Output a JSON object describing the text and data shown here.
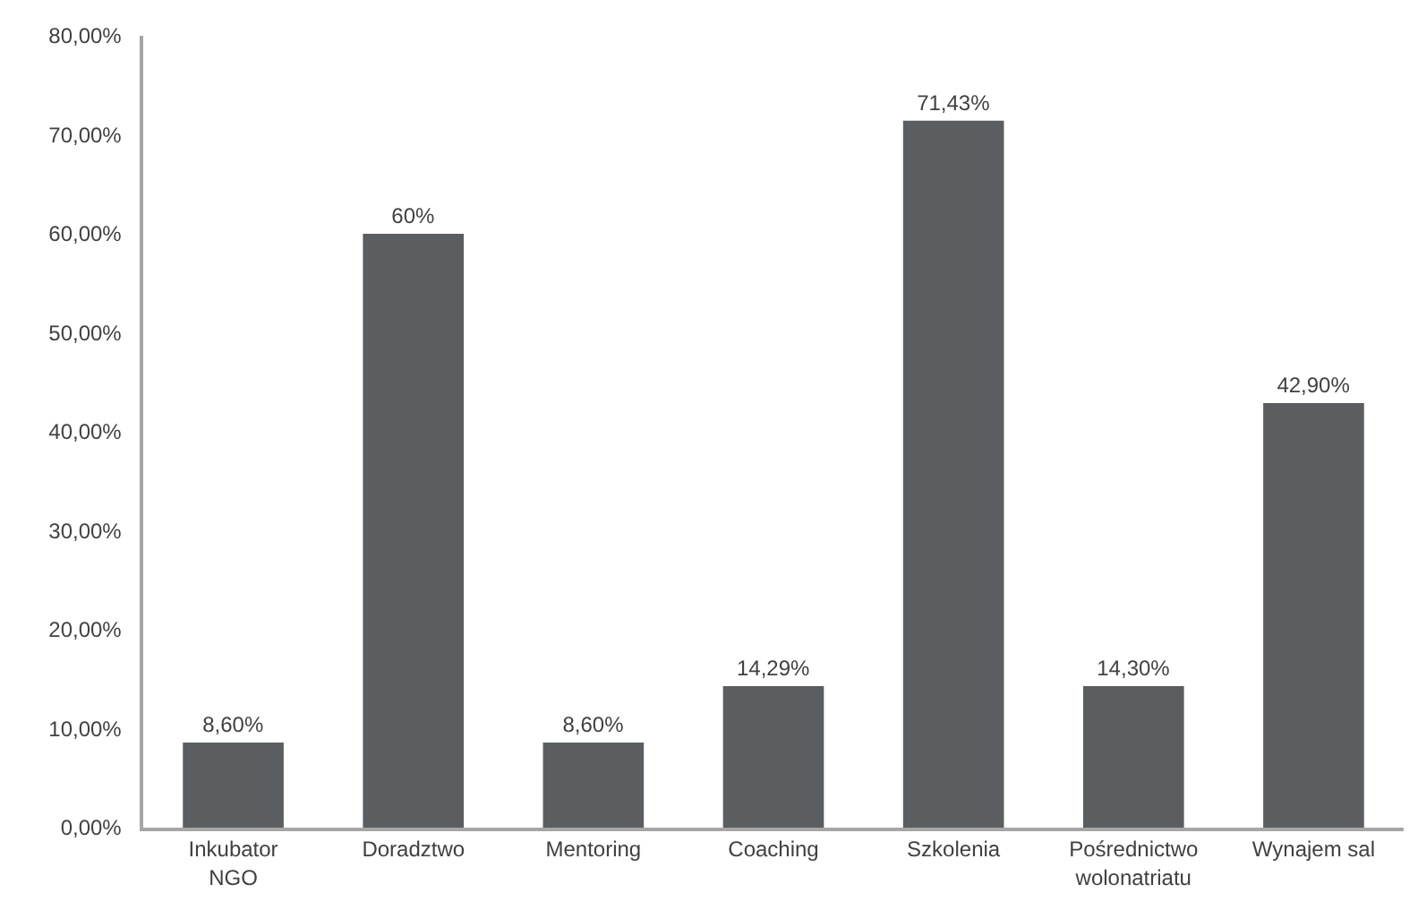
{
  "chart_data": {
    "type": "bar",
    "categories": [
      "Inkubator NGO",
      "Doradztwo",
      "Mentoring",
      "Coaching",
      "Szkolenia",
      "Pośrednictwo wolonatriatu",
      "Wynajem sal"
    ],
    "values": [
      8.6,
      60,
      8.6,
      14.29,
      71.43,
      14.3,
      42.9
    ],
    "value_labels": [
      "8,60%",
      "60%",
      "8,60%",
      "14,29%",
      "71,43%",
      "14,30%",
      "42,90%"
    ],
    "color": "#5a5e60",
    "ylim": [
      0,
      80
    ],
    "yticks": [
      {
        "value": 0,
        "label": "0,00%"
      },
      {
        "value": 10,
        "label": "10,00%"
      },
      {
        "value": 20,
        "label": "20,00%"
      },
      {
        "value": 30,
        "label": "30,00%"
      },
      {
        "value": 40,
        "label": "40,00%"
      },
      {
        "value": 50,
        "label": "50,00%"
      },
      {
        "value": 60,
        "label": "60,00%"
      },
      {
        "value": 70,
        "label": "70,00%"
      },
      {
        "value": 80,
        "label": "80,00%"
      }
    ]
  }
}
